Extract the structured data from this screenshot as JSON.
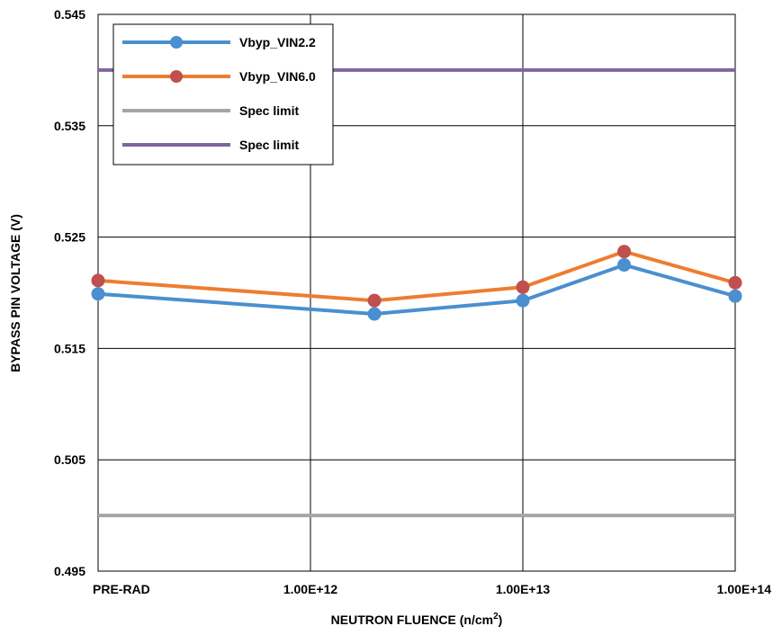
{
  "chart_data": {
    "type": "line",
    "title": "",
    "xlabel": "NEUTRON FLUENCE (n/cm",
    "xlabel_superscript": "2",
    "xlabel_close": ")",
    "ylabel": "BYPASS PIN VOLTAGE (V)",
    "x_scale": "log",
    "x_tick_labels": [
      "PRE-RAD",
      "1.00E+12",
      "1.00E+13",
      "1.00E+14"
    ],
    "x_tick_values": [
      100000000000,
      1000000000000,
      10000000000000,
      100000000000000
    ],
    "y_ticks": [
      0.495,
      0.505,
      0.515,
      0.525,
      0.535,
      0.545
    ],
    "y_tick_labels": [
      "0.495",
      "0.505",
      "0.515",
      "0.525",
      "0.535",
      "0.545"
    ],
    "ylim": [
      0.495,
      0.545
    ],
    "grid": true,
    "legend_position": "top-left",
    "x": [
      100000000000,
      2000000000000,
      10000000000000,
      30000000000000,
      100000000000000
    ],
    "series": [
      {
        "name": "Vbyp_VIN2.2",
        "color": "#4a8fcf",
        "marker": "circle",
        "values": [
          0.5199,
          0.5181,
          0.5193,
          0.5225,
          0.5197
        ]
      },
      {
        "name": "Vbyp_VIN6.0",
        "color": "#ed7d31",
        "marker_color": "#c0504d",
        "marker": "circle",
        "values": [
          0.5211,
          0.5193,
          0.5205,
          0.5237,
          0.5209
        ]
      },
      {
        "name": "Spec limit",
        "color": "#a6a6a6",
        "marker": "none",
        "values": [
          0.5,
          0.5,
          0.5,
          0.5,
          0.5
        ]
      },
      {
        "name": "Spec limit",
        "color": "#8064a2",
        "marker": "none",
        "values": [
          0.54,
          0.54,
          0.54,
          0.54,
          0.54
        ]
      }
    ]
  }
}
